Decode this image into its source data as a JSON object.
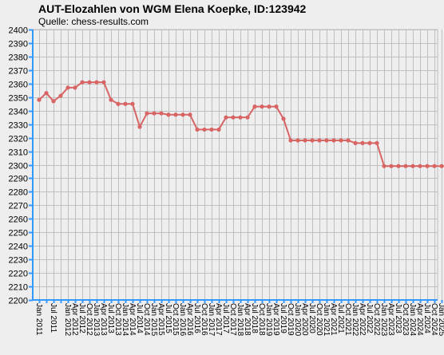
{
  "chart_data": {
    "type": "line",
    "title": "AUT-Elozahlen von WGM Elena Koepke, ID:123942",
    "subtitle": "Quelle: chess-results.com",
    "xlabel": "",
    "ylabel": "",
    "ylim": [
      2200,
      2400
    ],
    "ytick_step": 10,
    "grid": true,
    "colors": {
      "line": "#d96464",
      "marker": "#d96464",
      "axis": "#3399ff",
      "grid": "#c0c0c0",
      "background": "#eeeeee"
    },
    "x": [
      "Jan 2011",
      "Apr 2011",
      "Jul 2011",
      "Oct 2011",
      "Jan 2012",
      "Apr 2012",
      "Jul 2012",
      "Oct 2012",
      "Jan 2013",
      "Apr 2013",
      "Jul 2013",
      "Oct 2013",
      "Jan 2014",
      "Apr 2014",
      "Jul 2014",
      "Oct 2014",
      "Jan 2015",
      "Apr 2015",
      "Jul 2015",
      "Oct 2015",
      "Jan 2016",
      "Apr 2016",
      "Jul 2016",
      "Oct 2016",
      "Jan 2017",
      "Apr 2017",
      "Jul 2017",
      "Oct 2017",
      "Jan 2018",
      "Apr 2018",
      "Jul 2018",
      "Oct 2018",
      "Jan 2019",
      "Apr 2019",
      "Jul 2019",
      "Oct 2019",
      "Jan 2020",
      "Apr 2020",
      "Jul 2020",
      "Oct 2020",
      "Jan 2021",
      "Apr 2021",
      "Jul 2021",
      "Oct 2021",
      "Jan 2022",
      "Apr 2022",
      "Jul 2022",
      "Oct 2022",
      "Jan 2023",
      "Apr 2023",
      "Jul 2023",
      "Oct 2023",
      "Jan 2024",
      "Apr 2024",
      "Jul 2024",
      "Oct 2024",
      "Jan 2025",
      "Apr 2025"
    ],
    "x_tick_labels": [
      "Jan 2011",
      "Jul 2011",
      "Jan 2012",
      "Apr 2012",
      "Jul 2012",
      "Oct 2012",
      "Jan 2013",
      "Apr 2013",
      "Jul 2013",
      "Oct 2013",
      "Jan 2014",
      "Apr 2014",
      "Jul 2014",
      "Oct 2014",
      "Jan 2015",
      "Apr 2015",
      "Jul 2015",
      "Oct 2015",
      "Jan 2016",
      "Apr 2016",
      "Jul 2016",
      "Oct 2016",
      "Jan 2017",
      "Apr 2017",
      "Jul 2017",
      "Oct 2017",
      "Jan 2018",
      "Apr 2018",
      "Jul 2018",
      "Oct 2018",
      "Jan 2019",
      "Apr 2019",
      "Jul 2019",
      "Oct 2019",
      "Jan 2020",
      "Apr 2020",
      "Jul 2020",
      "Oct 2020",
      "Jan 2021",
      "Apr 2021",
      "Jul 2021",
      "Oct 2021",
      "Jan 2022",
      "Apr 2022",
      "Jul 2022",
      "Oct 2022",
      "Jan 2023",
      "Apr 2023",
      "Jul 2023",
      "Oct 2023",
      "Jan 2024",
      "Apr 2024",
      "Jul 2024",
      "Oct 2024",
      "Jan 2025",
      "Apr 2025"
    ],
    "series": [
      {
        "values": [
          2348,
          2353,
          2347,
          2351,
          2357,
          2357,
          2361,
          2361,
          2361,
          2361,
          2348,
          2345,
          2345,
          2345,
          2328,
          2338,
          2338,
          2338,
          2337,
          2337,
          2337,
          2337,
          2326,
          2326,
          2326,
          2326,
          2335,
          2335,
          2335,
          2335,
          2343,
          2343,
          2343,
          2343,
          2334,
          2318,
          2318,
          2318,
          2318,
          2318,
          2318,
          2318,
          2318,
          2318,
          2316,
          2316,
          2316,
          2316,
          2299,
          2299,
          2299,
          2299,
          2299,
          2299,
          2299,
          2299,
          2299,
          2299
        ]
      }
    ]
  }
}
